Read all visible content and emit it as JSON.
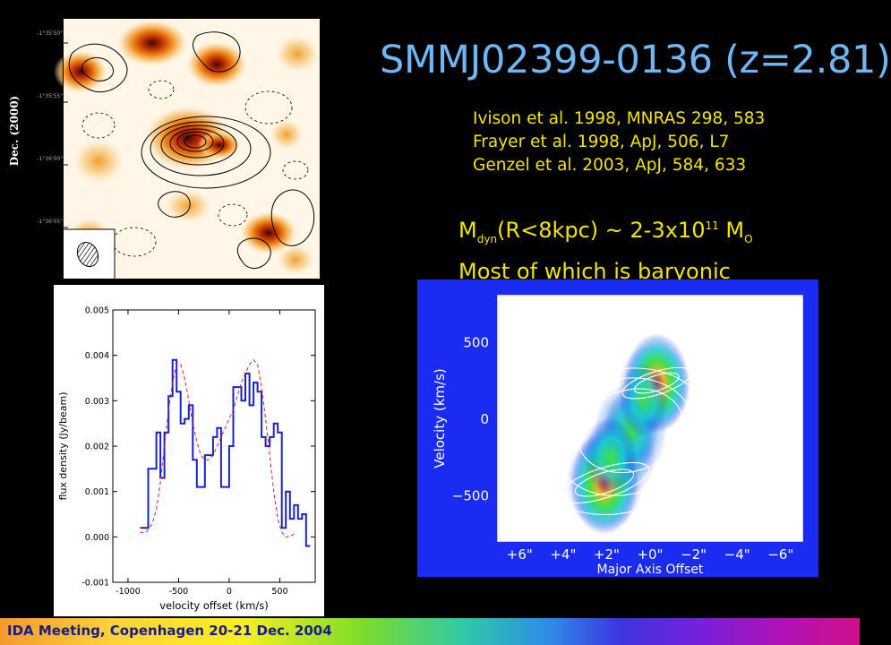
{
  "slide": {
    "title": "SMMJ02399-0136 (z=2.81)",
    "references": [
      "Ivison et al. 1998, MNRAS 298, 583",
      "Frayer et al. 1998, ApJ, 506, L7",
      "Genzel et al. 2003, ApJ, 584, 633"
    ],
    "mass_statement": {
      "m": "M",
      "sub_dyn": "dyn",
      "expr": "(R<8kpc) ~ 2-3x10",
      "sup_exp": "11",
      "m_sun": "M",
      "sub_sun": "O",
      "line2": "Most of which is baryonic"
    },
    "footer": "IDA Meeting, Copenhagen 20-21 Dec. 2004",
    "colors": {
      "title": "#6fb6f2",
      "text": "#f2e400",
      "spectrum_line": "#1a22c8",
      "model_line": "#d42020",
      "pv_background": "#1a2cf2"
    }
  },
  "radio_map": {
    "ylabel": "Dec. (2000)",
    "ytick_labels": [
      "-1°35'50\"",
      "-1°35'55\"",
      "-1°36'00\"",
      "-1°36'05\""
    ],
    "xtick_labels": [
      "",
      "",
      ""
    ],
    "beam_icon": "hatched-ellipse-beam"
  },
  "chart_data": [
    {
      "type": "line",
      "xlabel": "velocity offset (km/s)",
      "ylabel": "flux density (Jy/beam)",
      "xlim": [
        -1150,
        850
      ],
      "ylim": [
        -0.001,
        0.005
      ],
      "xticks": [
        -1000,
        -500,
        0,
        500
      ],
      "xtick_labels": [
        "-1000",
        "-500",
        "0",
        "500"
      ],
      "yticks": [
        -0.001,
        0.0,
        0.001,
        0.002,
        0.003,
        0.004,
        0.005
      ],
      "ytick_labels": [
        "-0.001",
        "0.000",
        "0.001",
        "0.002",
        "0.003",
        "0.004",
        "0.005"
      ],
      "grid": false,
      "series": [
        {
          "style": "step",
          "color": "#1a22c8",
          "x": [
            -860,
            -820,
            -780,
            -740,
            -700,
            -660,
            -620,
            -580,
            -540,
            -500,
            -460,
            -420,
            -380,
            -340,
            -300,
            -260,
            -220,
            -180,
            -140,
            -100,
            -60,
            -20,
            20,
            60,
            100,
            140,
            180,
            220,
            260,
            300,
            340,
            380,
            420,
            460,
            500,
            540,
            580,
            620,
            660,
            700,
            740,
            780
          ],
          "y": [
            0.0002,
            0.0002,
            0.0015,
            0.0015,
            0.0023,
            0.0013,
            0.0023,
            0.0031,
            0.0039,
            0.0032,
            0.0025,
            0.0026,
            0.0029,
            0.0017,
            0.0011,
            0.0011,
            0.0018,
            0.0018,
            0.0022,
            0.0024,
            0.0011,
            0.0011,
            0.002,
            0.0033,
            0.0033,
            0.003,
            0.0036,
            0.0029,
            0.0034,
            0.0032,
            0.0022,
            0.002,
            0.0022,
            0.0025,
            0.0023,
            0.0002,
            0.001,
            0.0004,
            0.0007,
            0.0004,
            0.0005,
            -0.0002
          ]
        },
        {
          "style": "dashed",
          "color": "#d42020",
          "x": [
            -880,
            -820,
            -760,
            -720,
            -680,
            -640,
            -600,
            -560,
            -520,
            -480,
            -440,
            -400,
            -360,
            -320,
            -280,
            -240,
            -200,
            -160,
            -120,
            -80,
            -40,
            0,
            40,
            80,
            120,
            160,
            200,
            240,
            280,
            320,
            360,
            400,
            440,
            480,
            520,
            560,
            600,
            660
          ],
          "y": [
            0.0001,
            0.0001,
            0.0003,
            0.0006,
            0.0012,
            0.002,
            0.0028,
            0.0034,
            0.0038,
            0.0038,
            0.0035,
            0.003,
            0.0025,
            0.0021,
            0.0018,
            0.0017,
            0.0017,
            0.0018,
            0.002,
            0.0022,
            0.0024,
            0.0026,
            0.0028,
            0.0031,
            0.0034,
            0.0036,
            0.0038,
            0.0039,
            0.0038,
            0.0033,
            0.0026,
            0.0018,
            0.001,
            0.0004,
            0.0001,
            0.0,
            0.0,
            0.0001
          ]
        }
      ]
    },
    {
      "type": "heatmap",
      "xlabel": "Major Axis Offset",
      "ylabel": "Velocity (km/s)",
      "xlim": [
        7,
        -7
      ],
      "ylim": [
        -800,
        800
      ],
      "xticks": [
        6,
        4,
        2,
        0,
        -2,
        -4,
        -6
      ],
      "xtick_labels": [
        "+6\"",
        "+4\"",
        "+2\"",
        "+0\"",
        "−2\"",
        "−4\"",
        "−6\""
      ],
      "yticks": [
        500,
        0,
        -500
      ],
      "ytick_labels": [
        "500",
        "0",
        "−500"
      ],
      "components": [
        {
          "x": 2.1,
          "y": -420,
          "intensity": 1.0
        },
        {
          "x": -0.3,
          "y": 230,
          "intensity": 0.95
        },
        {
          "x": 0.9,
          "y": -80,
          "intensity": 0.75
        },
        {
          "x": 1.8,
          "y": -250,
          "intensity": 0.7
        },
        {
          "x": 0.3,
          "y": 120,
          "intensity": 0.65
        }
      ]
    }
  ]
}
